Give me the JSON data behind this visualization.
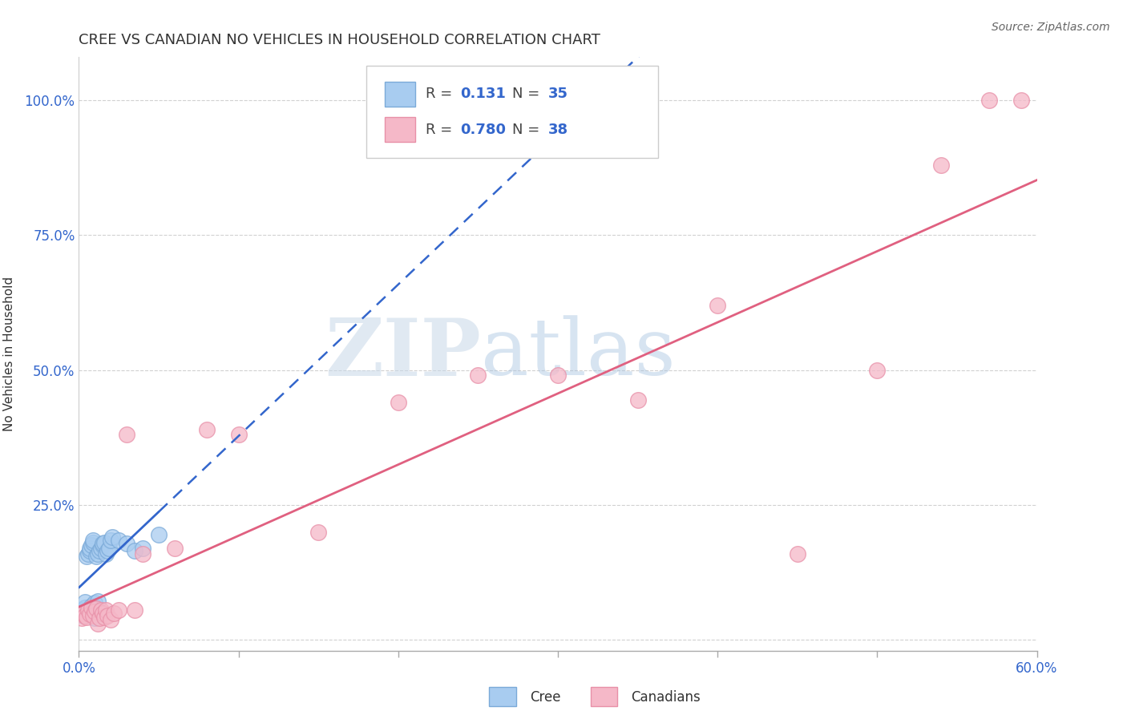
{
  "title": "CREE VS CANADIAN NO VEHICLES IN HOUSEHOLD CORRELATION CHART",
  "source": "Source: ZipAtlas.com",
  "ylabel": "No Vehicles in Household",
  "xlim": [
    0.0,
    0.6
  ],
  "ylim": [
    -0.02,
    1.08
  ],
  "xticks": [
    0.0,
    0.1,
    0.2,
    0.3,
    0.4,
    0.5,
    0.6
  ],
  "xticklabels": [
    "0.0%",
    "",
    "",
    "",
    "",
    "",
    "60.0%"
  ],
  "yticks": [
    0.0,
    0.25,
    0.5,
    0.75,
    1.0
  ],
  "yticklabels": [
    "",
    "25.0%",
    "50.0%",
    "75.0%",
    "100.0%"
  ],
  "cree_color": "#A8CCF0",
  "canadian_color": "#F5B8C8",
  "cree_edge_color": "#7BAAD8",
  "canadian_edge_color": "#E890A8",
  "cree_line_color": "#3366CC",
  "canadian_line_color": "#E06080",
  "watermark_zip": "ZIP",
  "watermark_atlas": "atlas",
  "legend_R_cree": "0.131",
  "legend_N_cree": "35",
  "legend_R_canadian": "0.780",
  "legend_N_canadian": "38",
  "cree_x": [
    0.001,
    0.002,
    0.003,
    0.004,
    0.004,
    0.005,
    0.005,
    0.006,
    0.006,
    0.007,
    0.007,
    0.008,
    0.008,
    0.009,
    0.009,
    0.01,
    0.01,
    0.011,
    0.012,
    0.012,
    0.013,
    0.014,
    0.015,
    0.015,
    0.016,
    0.017,
    0.018,
    0.019,
    0.02,
    0.021,
    0.025,
    0.03,
    0.035,
    0.04,
    0.05
  ],
  "cree_y": [
    0.05,
    0.055,
    0.045,
    0.06,
    0.07,
    0.048,
    0.155,
    0.052,
    0.16,
    0.165,
    0.17,
    0.063,
    0.175,
    0.18,
    0.185,
    0.04,
    0.068,
    0.155,
    0.072,
    0.16,
    0.165,
    0.17,
    0.175,
    0.178,
    0.18,
    0.16,
    0.165,
    0.17,
    0.185,
    0.19,
    0.185,
    0.178,
    0.165,
    0.17,
    0.195
  ],
  "canadian_x": [
    0.001,
    0.002,
    0.003,
    0.004,
    0.005,
    0.006,
    0.007,
    0.008,
    0.009,
    0.01,
    0.011,
    0.012,
    0.013,
    0.014,
    0.015,
    0.016,
    0.017,
    0.018,
    0.02,
    0.022,
    0.025,
    0.03,
    0.035,
    0.04,
    0.06,
    0.08,
    0.1,
    0.15,
    0.2,
    0.25,
    0.3,
    0.35,
    0.4,
    0.45,
    0.5,
    0.54,
    0.57,
    0.59
  ],
  "canadian_y": [
    0.048,
    0.04,
    0.05,
    0.045,
    0.042,
    0.055,
    0.048,
    0.06,
    0.045,
    0.052,
    0.058,
    0.03,
    0.04,
    0.055,
    0.05,
    0.042,
    0.055,
    0.045,
    0.038,
    0.05,
    0.055,
    0.38,
    0.055,
    0.16,
    0.17,
    0.39,
    0.38,
    0.2,
    0.44,
    0.49,
    0.49,
    0.445,
    0.62,
    0.16,
    0.5,
    0.88,
    1.0,
    1.0
  ]
}
